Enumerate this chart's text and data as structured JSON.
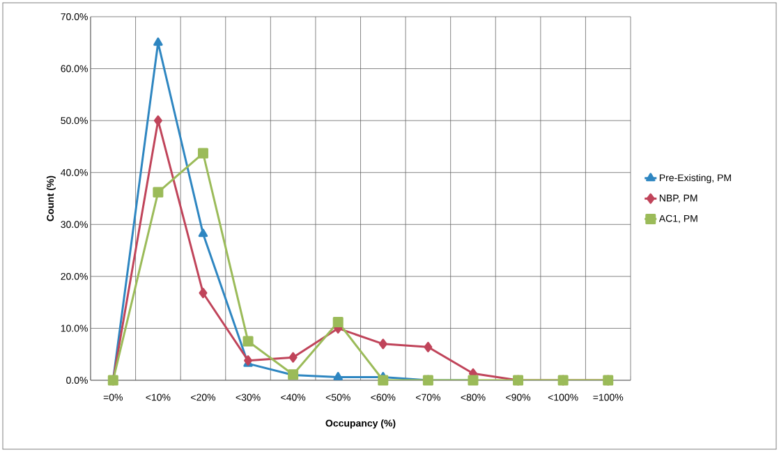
{
  "chart_data": {
    "type": "line",
    "xlabel": "Occupancy (%)",
    "ylabel": "Count (%)",
    "categories": [
      "=0%",
      "<10%",
      "<20%",
      "<30%",
      "<40%",
      "<50%",
      "<60%",
      "<70%",
      "<80%",
      "<90%",
      "<100%",
      "=100%"
    ],
    "series": [
      {
        "name": "Pre-Existing, PM",
        "color": "#2e86c1",
        "marker": "triangle",
        "values": [
          0,
          65.0,
          28.2,
          3.2,
          1.0,
          0.6,
          0.6,
          0,
          0,
          null,
          null,
          null
        ]
      },
      {
        "name": "NBP, PM",
        "color": "#c0445a",
        "marker": "diamond",
        "values": [
          0,
          50.0,
          16.8,
          3.8,
          4.4,
          10.0,
          7.0,
          6.4,
          1.3,
          0,
          0,
          0
        ]
      },
      {
        "name": "AC1, PM",
        "color": "#9bbb59",
        "marker": "square",
        "values": [
          0,
          36.2,
          43.7,
          7.5,
          1.1,
          11.2,
          0,
          0,
          0,
          0,
          0,
          0
        ]
      }
    ],
    "ylim": [
      0,
      70
    ],
    "yticks": [
      {
        "value": 0,
        "label": "0.0%"
      },
      {
        "value": 10,
        "label": "10.0%"
      },
      {
        "value": 20,
        "label": "20.0%"
      },
      {
        "value": 30,
        "label": "30.0%"
      },
      {
        "value": 40,
        "label": "40.0%"
      },
      {
        "value": 50,
        "label": "50.0%"
      },
      {
        "value": 60,
        "label": "60.0%"
      },
      {
        "value": 70,
        "label": "70.0%"
      }
    ],
    "grid": true,
    "legend": "right",
    "line_style": "solid"
  }
}
